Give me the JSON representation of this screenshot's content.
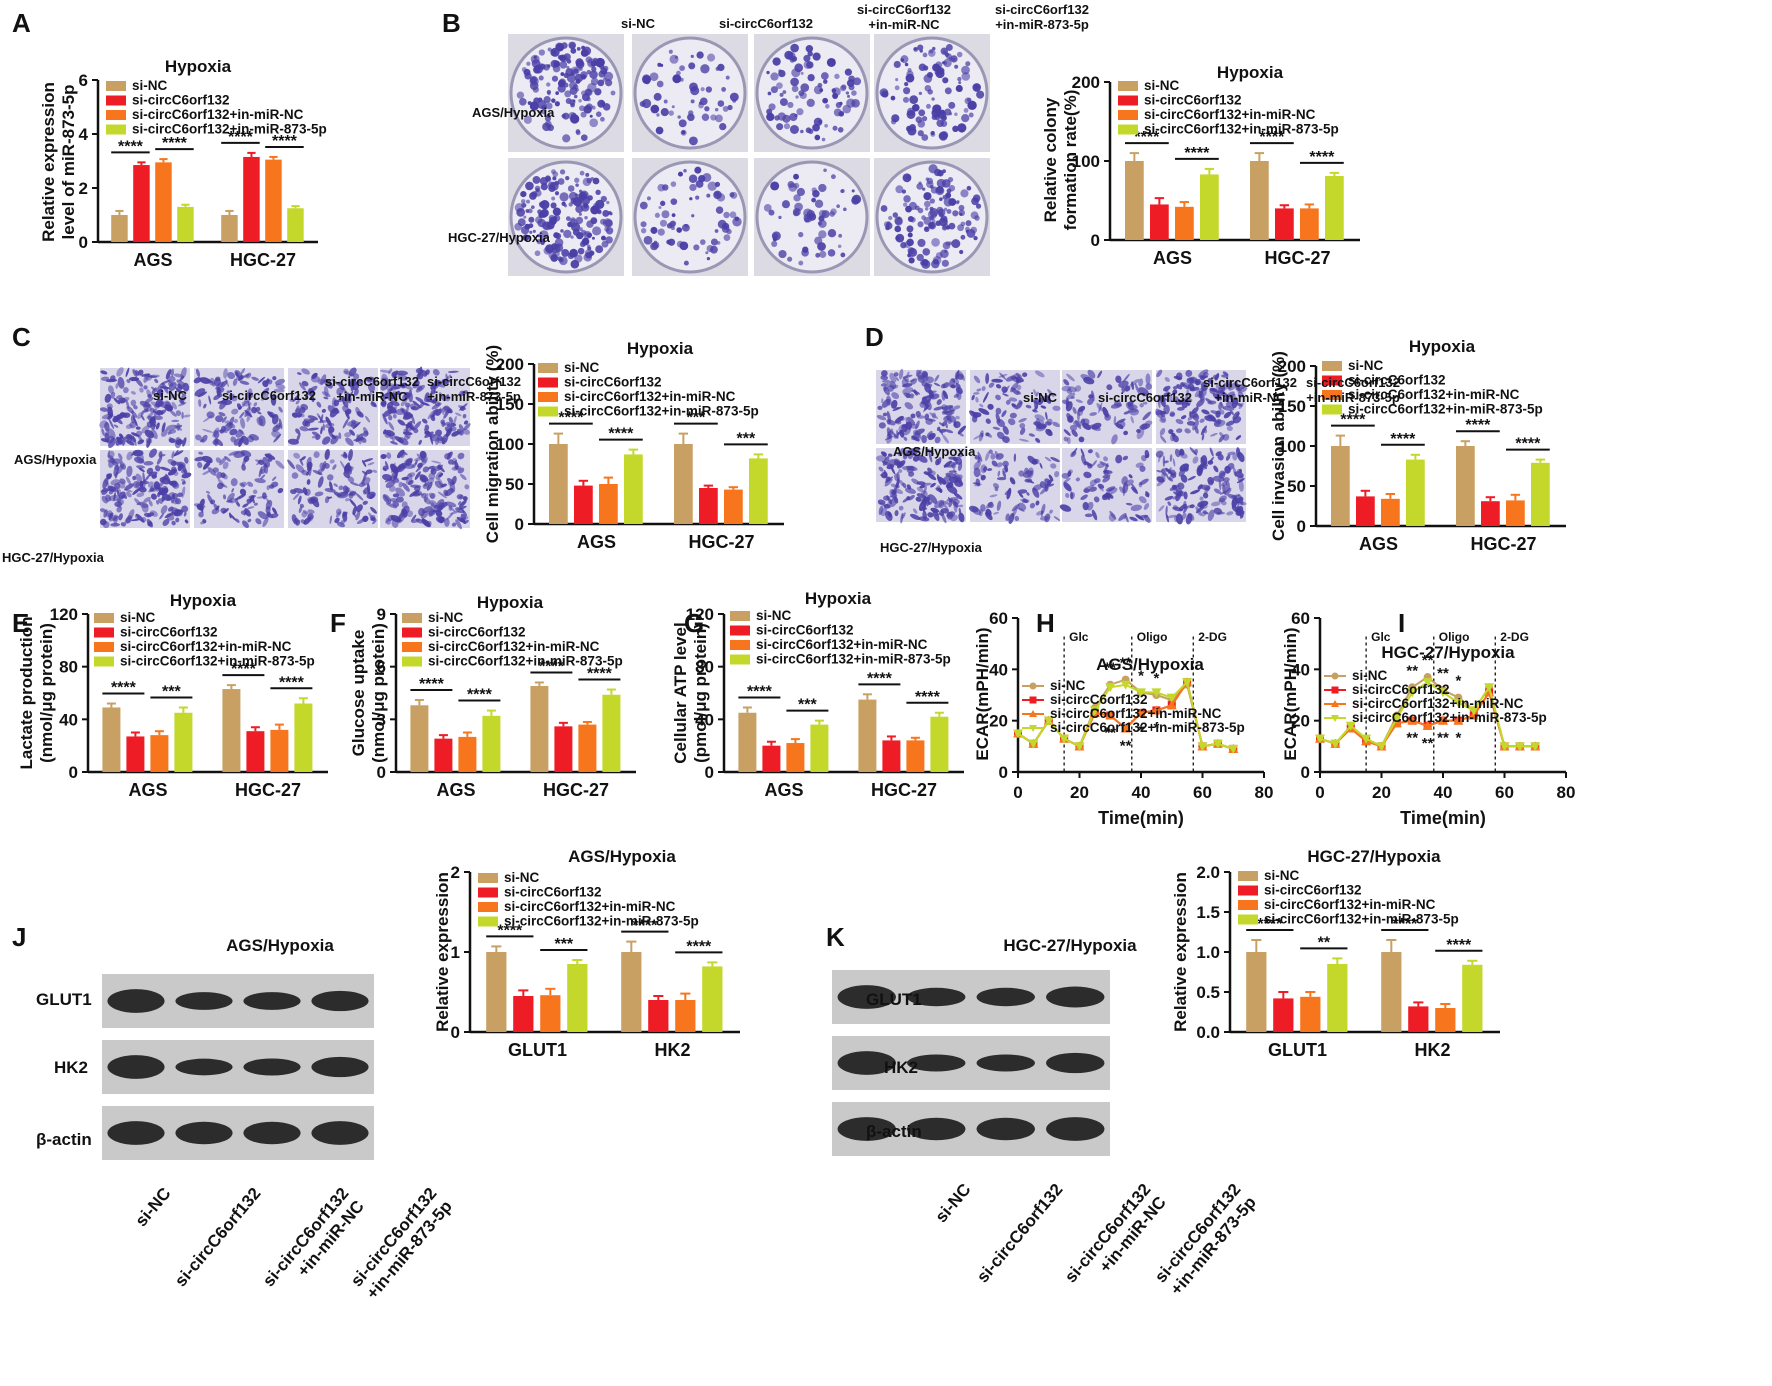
{
  "colors": {
    "si_NC": "#c8a064",
    "si_circ": "#ee1c24",
    "in_miR_NC": "#f7761d",
    "in_miR_873": "#c3d82b",
    "stain": "#4a3fa6",
    "band": "#1e1e1e"
  },
  "panel_labels": [
    "A",
    "B",
    "C",
    "D",
    "E",
    "F",
    "G",
    "H",
    "I",
    "J",
    "K"
  ],
  "groups": [
    "si-NC",
    "si-circC6orf132",
    "si-circC6orf132+in-miR-NC",
    "si-circC6orf132+in-miR-873-5p"
  ],
  "image_panels": {
    "B": {
      "col_labels": [
        "si-NC",
        "si-circC6orf132",
        "si-circC6orf132\n+in-miR-NC",
        "si-circC6orf132\n+in-miR-873-5p"
      ],
      "row_labels": [
        "AGS/Hypoxia",
        "HGC-27/Hypoxia"
      ]
    },
    "C": {
      "col_labels": [
        "si-NC",
        "si-circC6orf132",
        "si-circC6orf132\n+in-miR-NC",
        "si-circC6orf132\n+in-miR-873-5p"
      ],
      "row_labels": [
        "AGS/Hypoxia",
        "HGC-27/Hypoxia"
      ]
    },
    "D": {
      "col_labels": [
        "si-NC",
        "si-circC6orf132",
        "si-circC6orf132\n+in-miR-NC",
        "si-circC6orf132\n+in-miR-873-5p"
      ],
      "row_labels": [
        "AGS/Hypoxia",
        "HGC-27/Hypoxia"
      ]
    },
    "J": {
      "title": "AGS/Hypoxia",
      "band_labels": [
        "GLUT1",
        "HK2",
        "β-actin"
      ],
      "lane_labels": [
        "si-NC",
        "si-circC6orf132",
        "si-circC6orf132\n+in-miR-NC",
        "si-circC6orf132\n+in-miR-873-5p"
      ]
    },
    "K": {
      "title": "HGC-27/Hypoxia",
      "band_labels": [
        "GLUT1",
        "HK2",
        "β-actin"
      ],
      "lane_labels": [
        "si-NC",
        "si-circC6orf132",
        "si-circC6orf132\n+in-miR-NC",
        "si-circC6orf132\n+in-miR-873-5p"
      ]
    }
  },
  "chart_data": [
    {
      "id": "A",
      "type": "bar",
      "title": "Hypoxia",
      "ylabel": "Relative expression\nlevel of miR-873-5p",
      "ylim": [
        0,
        6
      ],
      "yticks": [
        0,
        2,
        4,
        6
      ],
      "categories": [
        "AGS",
        "HGC-27"
      ],
      "series": [
        {
          "name": "si-NC",
          "values": [
            1.0,
            1.0
          ],
          "err": [
            0.15,
            0.15
          ]
        },
        {
          "name": "si-circC6orf132",
          "values": [
            2.85,
            3.15
          ],
          "err": [
            0.1,
            0.15
          ]
        },
        {
          "name": "si-circC6orf132+in-miR-NC",
          "values": [
            2.95,
            3.05
          ],
          "err": [
            0.12,
            0.1
          ]
        },
        {
          "name": "si-circC6orf132+in-miR-873-5p",
          "values": [
            1.3,
            1.25
          ],
          "err": [
            0.08,
            0.08
          ]
        }
      ],
      "sig": [
        [
          "****",
          "****"
        ],
        [
          "****",
          "****"
        ]
      ],
      "legend": "top-left"
    },
    {
      "id": "B",
      "type": "bar",
      "title": "Hypoxia",
      "ylabel": "Relative colony\nformation rate(%)",
      "ylim": [
        0,
        200
      ],
      "yticks": [
        0,
        100,
        200
      ],
      "categories": [
        "AGS",
        "HGC-27"
      ],
      "series": [
        {
          "name": "si-NC",
          "values": [
            100,
            100
          ],
          "err": [
            10,
            10
          ]
        },
        {
          "name": "si-circC6orf132",
          "values": [
            45,
            40
          ],
          "err": [
            8,
            4
          ]
        },
        {
          "name": "si-circC6orf132+in-miR-NC",
          "values": [
            42,
            40
          ],
          "err": [
            6,
            5
          ]
        },
        {
          "name": "si-circC6orf132+in-miR-873-5p",
          "values": [
            83,
            81
          ],
          "err": [
            7,
            4
          ]
        }
      ],
      "sig": [
        [
          "****",
          "****"
        ],
        [
          "****",
          "****"
        ]
      ],
      "legend": "top-left"
    },
    {
      "id": "C",
      "type": "bar",
      "title": "Hypoxia",
      "ylabel": "Cell migration ability (%)",
      "ylim": [
        0,
        200
      ],
      "yticks": [
        0,
        50,
        100,
        150,
        200
      ],
      "categories": [
        "AGS",
        "HGC-27"
      ],
      "series": [
        {
          "name": "si-NC",
          "values": [
            100,
            100
          ],
          "err": [
            13,
            13
          ]
        },
        {
          "name": "si-circC6orf132",
          "values": [
            48,
            45
          ],
          "err": [
            6,
            3
          ]
        },
        {
          "name": "si-circC6orf132+in-miR-NC",
          "values": [
            50,
            43
          ],
          "err": [
            8,
            3
          ]
        },
        {
          "name": "si-circC6orf132+in-miR-873-5p",
          "values": [
            87,
            82
          ],
          "err": [
            6,
            5
          ]
        }
      ],
      "sig": [
        [
          "****",
          "***"
        ],
        [
          "****",
          "***"
        ]
      ],
      "legend": "top-left"
    },
    {
      "id": "D",
      "type": "bar",
      "title": "Hypoxia",
      "ylabel": "Cell invasion ability (%)",
      "ylim": [
        0,
        200
      ],
      "yticks": [
        0,
        50,
        100,
        150,
        200
      ],
      "categories": [
        "AGS",
        "HGC-27"
      ],
      "series": [
        {
          "name": "si-NC",
          "values": [
            100,
            100
          ],
          "err": [
            13,
            6
          ]
        },
        {
          "name": "si-circC6orf132",
          "values": [
            37,
            31
          ],
          "err": [
            7,
            5
          ]
        },
        {
          "name": "si-circC6orf132+in-miR-NC",
          "values": [
            34,
            32
          ],
          "err": [
            6,
            7
          ]
        },
        {
          "name": "si-circC6orf132+in-miR-873-5p",
          "values": [
            83,
            79
          ],
          "err": [
            6,
            4
          ]
        }
      ],
      "sig": [
        [
          "****",
          "****"
        ],
        [
          "****",
          "****"
        ]
      ],
      "legend": "top-left"
    },
    {
      "id": "E",
      "type": "bar",
      "title": "Hypoxia",
      "ylabel": "Lactate production\n(nmol/μg protein)",
      "ylim": [
        0,
        120
      ],
      "yticks": [
        0,
        40,
        80,
        120
      ],
      "categories": [
        "AGS",
        "HGC-27"
      ],
      "series": [
        {
          "name": "si-NC",
          "values": [
            49,
            63
          ],
          "err": [
            3,
            3
          ]
        },
        {
          "name": "si-circC6orf132",
          "values": [
            27,
            31
          ],
          "err": [
            3,
            3
          ]
        },
        {
          "name": "si-circC6orf132+in-miR-NC",
          "values": [
            28,
            32
          ],
          "err": [
            3,
            4
          ]
        },
        {
          "name": "si-circC6orf132+in-miR-873-5p",
          "values": [
            45,
            52
          ],
          "err": [
            4,
            4
          ]
        }
      ],
      "sig": [
        [
          "****",
          "****"
        ],
        [
          "***",
          "****"
        ]
      ],
      "legend": "top-left"
    },
    {
      "id": "F",
      "type": "bar",
      "title": "Hypoxia",
      "ylabel": "Glucose uptake\n(nmol/μg protein)",
      "ylim": [
        0,
        9
      ],
      "yticks": [
        0,
        3,
        6,
        9
      ],
      "categories": [
        "AGS",
        "HGC-27"
      ],
      "series": [
        {
          "name": "si-NC",
          "values": [
            3.8,
            4.9
          ],
          "err": [
            0.3,
            0.2
          ]
        },
        {
          "name": "si-circC6orf132",
          "values": [
            1.9,
            2.6
          ],
          "err": [
            0.2,
            0.2
          ]
        },
        {
          "name": "si-circC6orf132+in-miR-NC",
          "values": [
            2.0,
            2.7
          ],
          "err": [
            0.25,
            0.15
          ]
        },
        {
          "name": "si-circC6orf132+in-miR-873-5p",
          "values": [
            3.2,
            4.4
          ],
          "err": [
            0.3,
            0.3
          ]
        }
      ],
      "sig": [
        [
          "****",
          "****"
        ],
        [
          "****",
          "****"
        ]
      ],
      "legend": "top-left"
    },
    {
      "id": "G",
      "type": "bar",
      "title": "Hypoxia",
      "ylabel": "Cellular ATP level\n(pmol/μg protein)",
      "ylim": [
        0,
        120
      ],
      "yticks": [
        0,
        40,
        80,
        120
      ],
      "categories": [
        "AGS",
        "HGC-27"
      ],
      "series": [
        {
          "name": "si-NC",
          "values": [
            45,
            55
          ],
          "err": [
            4,
            4
          ]
        },
        {
          "name": "si-circC6orf132",
          "values": [
            20,
            24
          ],
          "err": [
            3,
            3
          ]
        },
        {
          "name": "si-circC6orf132+in-miR-NC",
          "values": [
            22,
            24
          ],
          "err": [
            3,
            2
          ]
        },
        {
          "name": "si-circC6orf132+in-miR-873-5p",
          "values": [
            36,
            42
          ],
          "err": [
            3,
            3
          ]
        }
      ],
      "sig": [
        [
          "****",
          "****"
        ],
        [
          "***",
          "****"
        ]
      ],
      "legend": "top-left"
    },
    {
      "id": "H",
      "type": "line",
      "title": "AGS/Hypoxia",
      "xlabel": "Time(min)",
      "ylabel": "ECAR(mPH/min)",
      "xlim": [
        0,
        80
      ],
      "xticks": [
        0,
        20,
        40,
        60,
        80
      ],
      "ylim": [
        0,
        60
      ],
      "yticks": [
        0,
        20,
        40,
        60
      ],
      "x": [
        0,
        5,
        10,
        15,
        20,
        25,
        30,
        35,
        40,
        45,
        50,
        55,
        60,
        65,
        70
      ],
      "series": [
        {
          "name": "si-NC",
          "values": [
            15,
            11,
            20,
            13,
            10,
            25,
            34,
            36,
            31,
            30,
            28,
            34,
            10,
            11,
            9
          ]
        },
        {
          "name": "si-circC6orf132",
          "values": [
            15,
            11,
            20,
            13,
            10,
            23,
            22,
            17,
            23,
            24,
            26,
            35,
            10,
            11,
            9
          ]
        },
        {
          "name": "si-circC6orf132+in-miR-NC",
          "values": [
            15,
            11,
            20,
            13,
            10,
            23,
            22,
            17,
            23,
            24,
            26,
            35,
            10,
            11,
            9
          ]
        },
        {
          "name": "si-circC6orf132+in-miR-873-5p",
          "values": [
            15,
            11,
            20,
            13,
            10,
            24,
            33,
            34,
            31,
            31,
            29,
            35,
            10,
            11,
            9
          ]
        }
      ],
      "vlines": [
        {
          "x": 15,
          "label": "Glc"
        },
        {
          "x": 37,
          "label": "Oligo"
        },
        {
          "x": 57,
          "label": "2-DG"
        }
      ],
      "annotations_top": [
        {
          "x": 30,
          "t": "**"
        },
        {
          "x": 35,
          "t": "**"
        },
        {
          "x": 40,
          "t": "*"
        },
        {
          "x": 45,
          "t": "*"
        }
      ],
      "annotations_bottom": [
        {
          "x": 30,
          "t": "**"
        },
        {
          "x": 35,
          "t": "**"
        },
        {
          "x": 40,
          "t": "*"
        },
        {
          "x": 45,
          "t": "*"
        }
      ],
      "legend": "top-left"
    },
    {
      "id": "I",
      "type": "line",
      "title": "HGC-27/Hypoxia",
      "xlabel": "Time(min)",
      "ylabel": "ECAR(mPH/min)",
      "xlim": [
        0,
        80
      ],
      "xticks": [
        0,
        20,
        40,
        60,
        80
      ],
      "ylim": [
        0,
        60
      ],
      "yticks": [
        0,
        20,
        40,
        60
      ],
      "x": [
        0,
        5,
        10,
        15,
        20,
        25,
        30,
        35,
        40,
        45,
        50,
        55,
        60,
        65,
        70
      ],
      "series": [
        {
          "name": "si-NC",
          "values": [
            13,
            11,
            18,
            13,
            10,
            22,
            33,
            37,
            32,
            29,
            24,
            33,
            10,
            10,
            10
          ]
        },
        {
          "name": "si-circC6orf132",
          "values": [
            13,
            11,
            17,
            12,
            10,
            19,
            20,
            18,
            20,
            20,
            22,
            31,
            10,
            10,
            10
          ]
        },
        {
          "name": "si-circC6orf132+in-miR-NC",
          "values": [
            13,
            11,
            17,
            12,
            10,
            19,
            20,
            18,
            20,
            20,
            22,
            31,
            10,
            10,
            10
          ]
        },
        {
          "name": "si-circC6orf132+in-miR-873-5p",
          "values": [
            13,
            11,
            18,
            13,
            10,
            21,
            31,
            35,
            31,
            27,
            24,
            33,
            10,
            10,
            10
          ]
        }
      ],
      "vlines": [
        {
          "x": 15,
          "label": "Glc"
        },
        {
          "x": 37,
          "label": "Oligo"
        },
        {
          "x": 57,
          "label": "2-DG"
        }
      ],
      "annotations_top": [
        {
          "x": 30,
          "t": "**"
        },
        {
          "x": 35,
          "t": "**"
        },
        {
          "x": 40,
          "t": "**"
        },
        {
          "x": 45,
          "t": "*"
        }
      ],
      "annotations_bottom": [
        {
          "x": 30,
          "t": "**"
        },
        {
          "x": 35,
          "t": "**"
        },
        {
          "x": 40,
          "t": "**"
        },
        {
          "x": 45,
          "t": "*"
        }
      ],
      "legend": "top-left"
    },
    {
      "id": "J",
      "type": "bar",
      "title": "AGS/Hypoxia",
      "ylabel": "Relative expression",
      "ylim": [
        0,
        2
      ],
      "yticks": [
        0,
        1,
        2
      ],
      "categories": [
        "GLUT1",
        "HK2"
      ],
      "series": [
        {
          "name": "si-NC",
          "values": [
            1.0,
            1.0
          ],
          "err": [
            0.07,
            0.13
          ]
        },
        {
          "name": "si-circC6orf132",
          "values": [
            0.45,
            0.4
          ],
          "err": [
            0.07,
            0.05
          ]
        },
        {
          "name": "si-circC6orf132+in-miR-NC",
          "values": [
            0.46,
            0.4
          ],
          "err": [
            0.08,
            0.08
          ]
        },
        {
          "name": "si-circC6orf132+in-miR-873-5p",
          "values": [
            0.85,
            0.82
          ],
          "err": [
            0.05,
            0.05
          ]
        }
      ],
      "sig": [
        [
          "****",
          "****"
        ],
        [
          "***",
          "****"
        ]
      ],
      "legend": "top-left"
    },
    {
      "id": "K",
      "type": "bar",
      "title": "HGC-27/Hypoxia",
      "ylabel": "Relative expression",
      "ylim": [
        0,
        2
      ],
      "yticks": [
        "0.0",
        "0.5",
        "1.0",
        "1.5",
        "2.0"
      ],
      "categories": [
        "GLUT1",
        "HK2"
      ],
      "series": [
        {
          "name": "si-NC",
          "values": [
            1.0,
            1.0
          ],
          "err": [
            0.15,
            0.15
          ]
        },
        {
          "name": "si-circC6orf132",
          "values": [
            0.42,
            0.32
          ],
          "err": [
            0.08,
            0.05
          ]
        },
        {
          "name": "si-circC6orf132+in-miR-NC",
          "values": [
            0.44,
            0.3
          ],
          "err": [
            0.06,
            0.05
          ]
        },
        {
          "name": "si-circC6orf132+in-miR-873-5p",
          "values": [
            0.85,
            0.84
          ],
          "err": [
            0.07,
            0.05
          ]
        }
      ],
      "sig": [
        [
          "****",
          "****"
        ],
        [
          "**",
          "****"
        ]
      ],
      "legend": "top-left"
    }
  ]
}
